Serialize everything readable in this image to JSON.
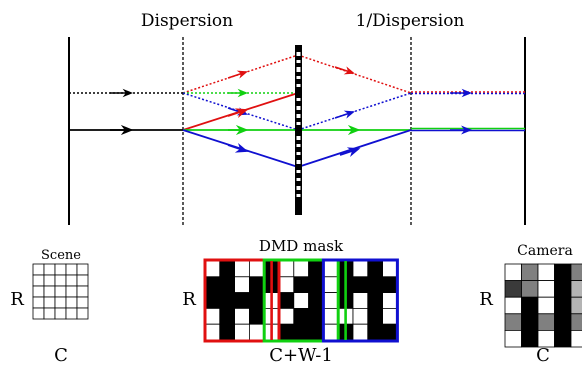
{
  "labels": {
    "dispersion": "Dispersion",
    "inverse_dispersion": "1/Dispersion",
    "scene": "Scene",
    "dmd_mask": "DMD mask",
    "camera": "Camera",
    "rows": "R",
    "cols": "C",
    "mask_cols": "C+W-1"
  },
  "colors": {
    "red": "#e01010",
    "green": "#10d010",
    "blue": "#1010d0",
    "black": "#000000",
    "dark_gray": "#3a3a3a",
    "mid_gray": "#808080",
    "light_gray": "#b4b4b4",
    "white": "#ffffff"
  },
  "grids": {
    "scene": {
      "rows": 5,
      "cols": 5,
      "cells": [
        [
          0,
          0,
          0,
          0,
          0
        ],
        [
          0,
          0,
          0,
          0,
          0
        ],
        [
          0,
          0,
          0,
          0,
          0
        ],
        [
          0,
          0,
          0,
          0,
          0
        ],
        [
          0,
          0,
          0,
          0,
          0
        ]
      ]
    },
    "dmd_mask": {
      "rows": 5,
      "cols": 13,
      "cells": [
        [
          0,
          1,
          0,
          0,
          1,
          0,
          0,
          1,
          0,
          1,
          0,
          1,
          0
        ],
        [
          1,
          1,
          0,
          1,
          1,
          0,
          1,
          1,
          0,
          1,
          1,
          1,
          1
        ],
        [
          1,
          1,
          1,
          1,
          0,
          1,
          0,
          1,
          0,
          1,
          0,
          1,
          0
        ],
        [
          0,
          1,
          0,
          1,
          0,
          0,
          1,
          1,
          0,
          0,
          0,
          1,
          0
        ],
        [
          0,
          1,
          0,
          0,
          0,
          1,
          1,
          1,
          0,
          1,
          0,
          1,
          1
        ]
      ],
      "color_boxes": [
        {
          "color": "red",
          "from_col": 0,
          "to_col": 5
        },
        {
          "color": "green",
          "from_col": 4,
          "to_col": 9
        },
        {
          "color": "blue",
          "from_col": 8,
          "to_col": 13
        }
      ],
      "inner_lines": [
        {
          "color": "red",
          "at_col": 4
        },
        {
          "color": "green",
          "at_col": 9
        }
      ]
    },
    "camera": {
      "rows": 5,
      "cols": 5,
      "cells": [
        [
          "white",
          "mid_gray",
          "white",
          "black",
          "mid_gray"
        ],
        [
          "dark_gray",
          "mid_gray",
          "white",
          "black",
          "light_gray"
        ],
        [
          "white",
          "black",
          "white",
          "black",
          "light_gray"
        ],
        [
          "mid_gray",
          "black",
          "mid_gray",
          "black",
          "mid_gray"
        ],
        [
          "white",
          "black",
          "white",
          "black",
          "white"
        ]
      ]
    }
  }
}
